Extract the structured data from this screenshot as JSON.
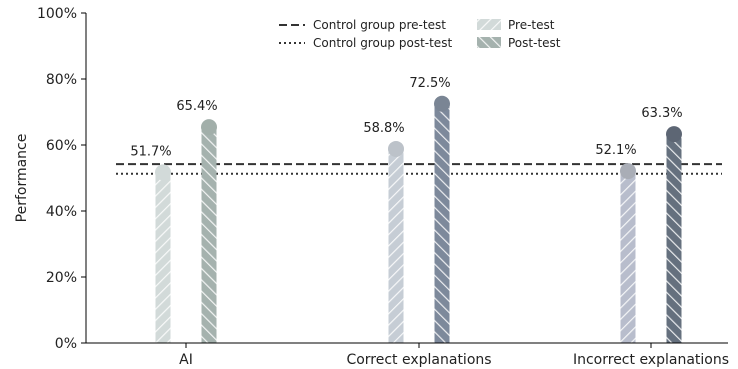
{
  "chart_data": {
    "type": "bar",
    "ylabel": "Performance",
    "ylim": [
      0,
      100
    ],
    "yticks": [
      "0%",
      "20%",
      "40%",
      "60%",
      "80%",
      "100%"
    ],
    "categories": [
      "AI",
      "Correct explanations",
      "Incorrect explanations"
    ],
    "series": [
      {
        "name": "Pre-test",
        "values": [
          51.7,
          58.8,
          52.1
        ],
        "labels": [
          "51.7%",
          "58.8%",
          "52.1%"
        ]
      },
      {
        "name": "Post-test",
        "values": [
          65.4,
          72.5,
          63.3
        ],
        "labels": [
          "65.4%",
          "72.5%",
          "63.3%"
        ]
      }
    ],
    "reference_lines": [
      {
        "name": "Control group pre-test",
        "value": 54.2,
        "style": "dashed"
      },
      {
        "name": "Control group post-test",
        "value": 51.3,
        "style": "dotted"
      }
    ],
    "legend_position": "top-center",
    "grid": false,
    "colors": {
      "pre": [
        "#d2dad9",
        "#c6cdd5",
        "#b8bdcc"
      ],
      "post": [
        "#a5b2ae",
        "#7d899b",
        "#65707e"
      ],
      "pre_dot": [
        "#d2dad9",
        "#bcc2c9",
        "#a9adb6"
      ],
      "post_dot": [
        "#a2afaa",
        "#7a8594",
        "#5d6674"
      ],
      "legend_pre": "#d2dad9",
      "legend_post": "#a5b2ae",
      "ref_line": "#333333"
    }
  }
}
